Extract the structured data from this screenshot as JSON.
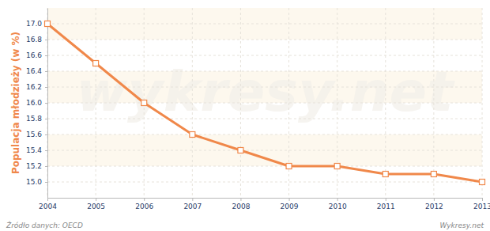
{
  "chart_data": {
    "type": "line",
    "y_label": "Populacja młodzieży (w %)",
    "source": "Źródło danych: OECD",
    "credit": "Wykresy.net",
    "watermark": "wykresy.net",
    "x": [
      2004,
      2005,
      2006,
      2007,
      2008,
      2009,
      2010,
      2011,
      2012,
      2013
    ],
    "series": [
      {
        "color": "#f0884a",
        "marker": "square",
        "line_style": "solid",
        "values": [
          17.0,
          16.5,
          16.0,
          15.6,
          15.4,
          15.2,
          15.2,
          15.1,
          15.1,
          15.0
        ]
      }
    ],
    "xlim": [
      2004,
      2013
    ],
    "xticks": [
      2004,
      2005,
      2006,
      2007,
      2008,
      2009,
      2010,
      2011,
      2012,
      2013
    ],
    "ylim": [
      14.8,
      17.2
    ],
    "yticks": [
      {
        "value": 15,
        "label": "15.0"
      },
      15.2,
      15.4,
      15.6,
      15.8,
      {
        "value": 16,
        "label": "16.0"
      },
      16.2,
      16.4,
      16.6,
      16.8,
      {
        "value": 17,
        "label": "17.0"
      }
    ],
    "grid": true
  }
}
